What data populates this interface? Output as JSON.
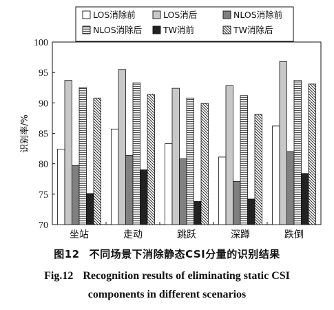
{
  "chart_data": {
    "type": "bar",
    "categories": [
      "坐站",
      "走动",
      "跳跃",
      "深蹲",
      "跌倒"
    ],
    "series": [
      {
        "name": "LOS消除前",
        "style": "white",
        "values": [
          82.4,
          85.7,
          83.3,
          81.1,
          86.2
        ]
      },
      {
        "name": "LOS消后",
        "style": "lightgray",
        "values": [
          93.7,
          95.5,
          92.4,
          92.8,
          96.8
        ]
      },
      {
        "name": "NLOS消除前",
        "style": "darkgray",
        "values": [
          79.7,
          81.4,
          80.8,
          77.1,
          82.0
        ]
      },
      {
        "name": "NLOS消除后",
        "style": "horizontal-hatch",
        "values": [
          92.5,
          93.3,
          90.8,
          91.2,
          93.7
        ]
      },
      {
        "name": "TW消前",
        "style": "black",
        "values": [
          75.1,
          79.0,
          73.8,
          74.2,
          78.4
        ]
      },
      {
        "name": "TW消除后",
        "style": "diagonal-hatch",
        "values": [
          90.8,
          91.4,
          89.9,
          88.1,
          93.1
        ]
      }
    ],
    "ylabel": "识别率/%",
    "ylim": [
      70,
      100
    ],
    "yticks": [
      70,
      75,
      80,
      85,
      90,
      95,
      100
    ],
    "legend_position": "top",
    "colors": {
      "white": "#ffffff",
      "lightgray": "#c8c8c8",
      "darkgray": "#808080",
      "black": "#222222"
    }
  },
  "caption": {
    "cn_label": "图12",
    "cn_text": "不同场景下消除静态CSI分量的识别结果",
    "en_label": "Fig.12",
    "en_line1": "Recognition results of eliminating static CSI",
    "en_line2": "components in different scenarios"
  }
}
